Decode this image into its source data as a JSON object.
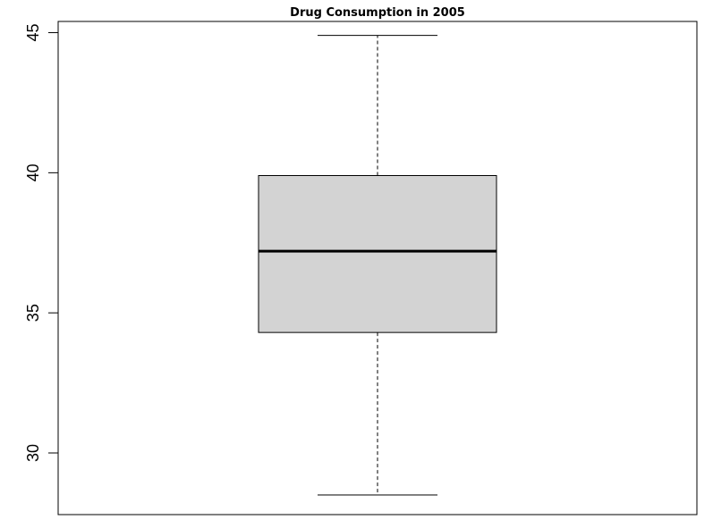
{
  "chart_data": {
    "type": "boxplot",
    "title": "Drug Consumption in 2005",
    "xlabel": "",
    "ylabel": "",
    "ylim": [
      27.8,
      45.4
    ],
    "yticks": [
      30,
      35,
      40,
      45
    ],
    "grid": false,
    "box": {
      "whisker_low": 28.5,
      "q1": 34.3,
      "median": 37.2,
      "q3": 39.9,
      "whisker_high": 44.9
    },
    "colors": {
      "box_fill": "#d3d3d3",
      "stroke": "#000000"
    }
  }
}
